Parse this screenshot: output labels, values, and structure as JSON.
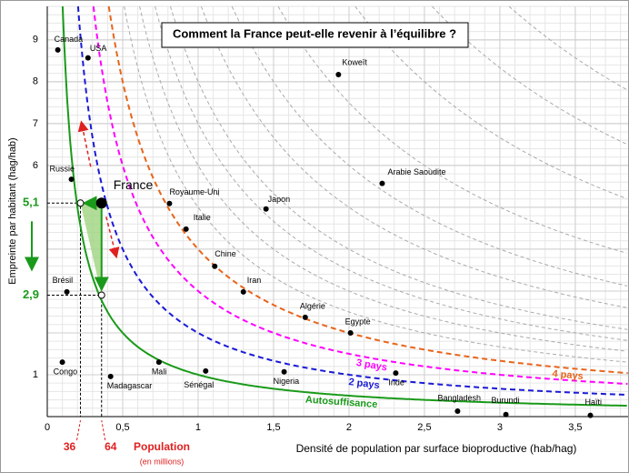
{
  "chart_data": {
    "type": "scatter",
    "title": "Comment la France peut-elle revenir à l’équilibre ?",
    "x_label": "Densité de population par surface bioproductive (hab/hag)",
    "y_label": "Empreinte par habitant (hag/hab)",
    "xlim": [
      0,
      3.85
    ],
    "ylim": [
      0,
      9.8
    ],
    "xticks": [
      0,
      {
        "value": 0.5,
        "label": "0,5"
      },
      1,
      {
        "value": 1.5,
        "label": "1,5"
      },
      2,
      {
        "value": 2.5,
        "label": "2,5"
      },
      3,
      {
        "value": 3.5,
        "label": "3,5"
      }
    ],
    "yticks": [
      1,
      6,
      7,
      8,
      9
    ],
    "grid": true,
    "point_color": "#000000",
    "labels": [
      "Canada",
      "USA",
      "Koweït",
      "Arabie Saoudite",
      "Russie",
      "Royaume-Uni",
      "Japon",
      "Italie",
      "Chine",
      "Iran",
      "Algérie",
      "Egypte",
      "Brésil",
      "Congo",
      "Madagascar",
      "Mali",
      "Sénégal",
      "Nigeria",
      "Inde",
      "Bangladesh",
      "Burundi",
      "Haïti"
    ],
    "x": [
      0.07,
      0.27,
      1.93,
      2.22,
      0.16,
      0.81,
      1.45,
      0.92,
      1.11,
      1.3,
      1.71,
      2.01,
      0.13,
      0.1,
      0.42,
      0.74,
      1.05,
      1.57,
      2.31,
      2.72,
      3.04,
      3.6
    ],
    "y": [
      8.76,
      8.57,
      8.17,
      5.57,
      5.67,
      5.09,
      4.96,
      4.48,
      3.59,
      2.98,
      2.37,
      2.0,
      2.98,
      1.3,
      0.96,
      1.3,
      1.09,
      1.07,
      1.04,
      0.13,
      0.05,
      0.03
    ],
    "curves": [
      {
        "name": "Autosuffisance",
        "k": 1,
        "color": "#1a9a1a",
        "dashed": false
      },
      {
        "name": "2 pays",
        "k": 2,
        "color": "#1a1ad6",
        "dashed": true
      },
      {
        "name": "3 pays",
        "k": 3,
        "color": "#ff00ff",
        "dashed": true
      },
      {
        "name": "4 pays",
        "k": 4,
        "color": "#e8641a",
        "dashed": true
      }
    ],
    "iso_curves": [
      5,
      6,
      7,
      8,
      10,
      12,
      15,
      20,
      25,
      30
    ],
    "france": {
      "label": "France",
      "x": 0.36,
      "y": 5.1
    },
    "y_markers": [
      {
        "value": 5.1,
        "label": "5,1"
      },
      {
        "value": 2.9,
        "label": "2,9"
      }
    ],
    "x_markers": [
      {
        "value": 0.22,
        "label": "36"
      },
      {
        "value": 0.36,
        "label": "64"
      }
    ],
    "population_label": "Population",
    "population_note": "(en millions)"
  }
}
